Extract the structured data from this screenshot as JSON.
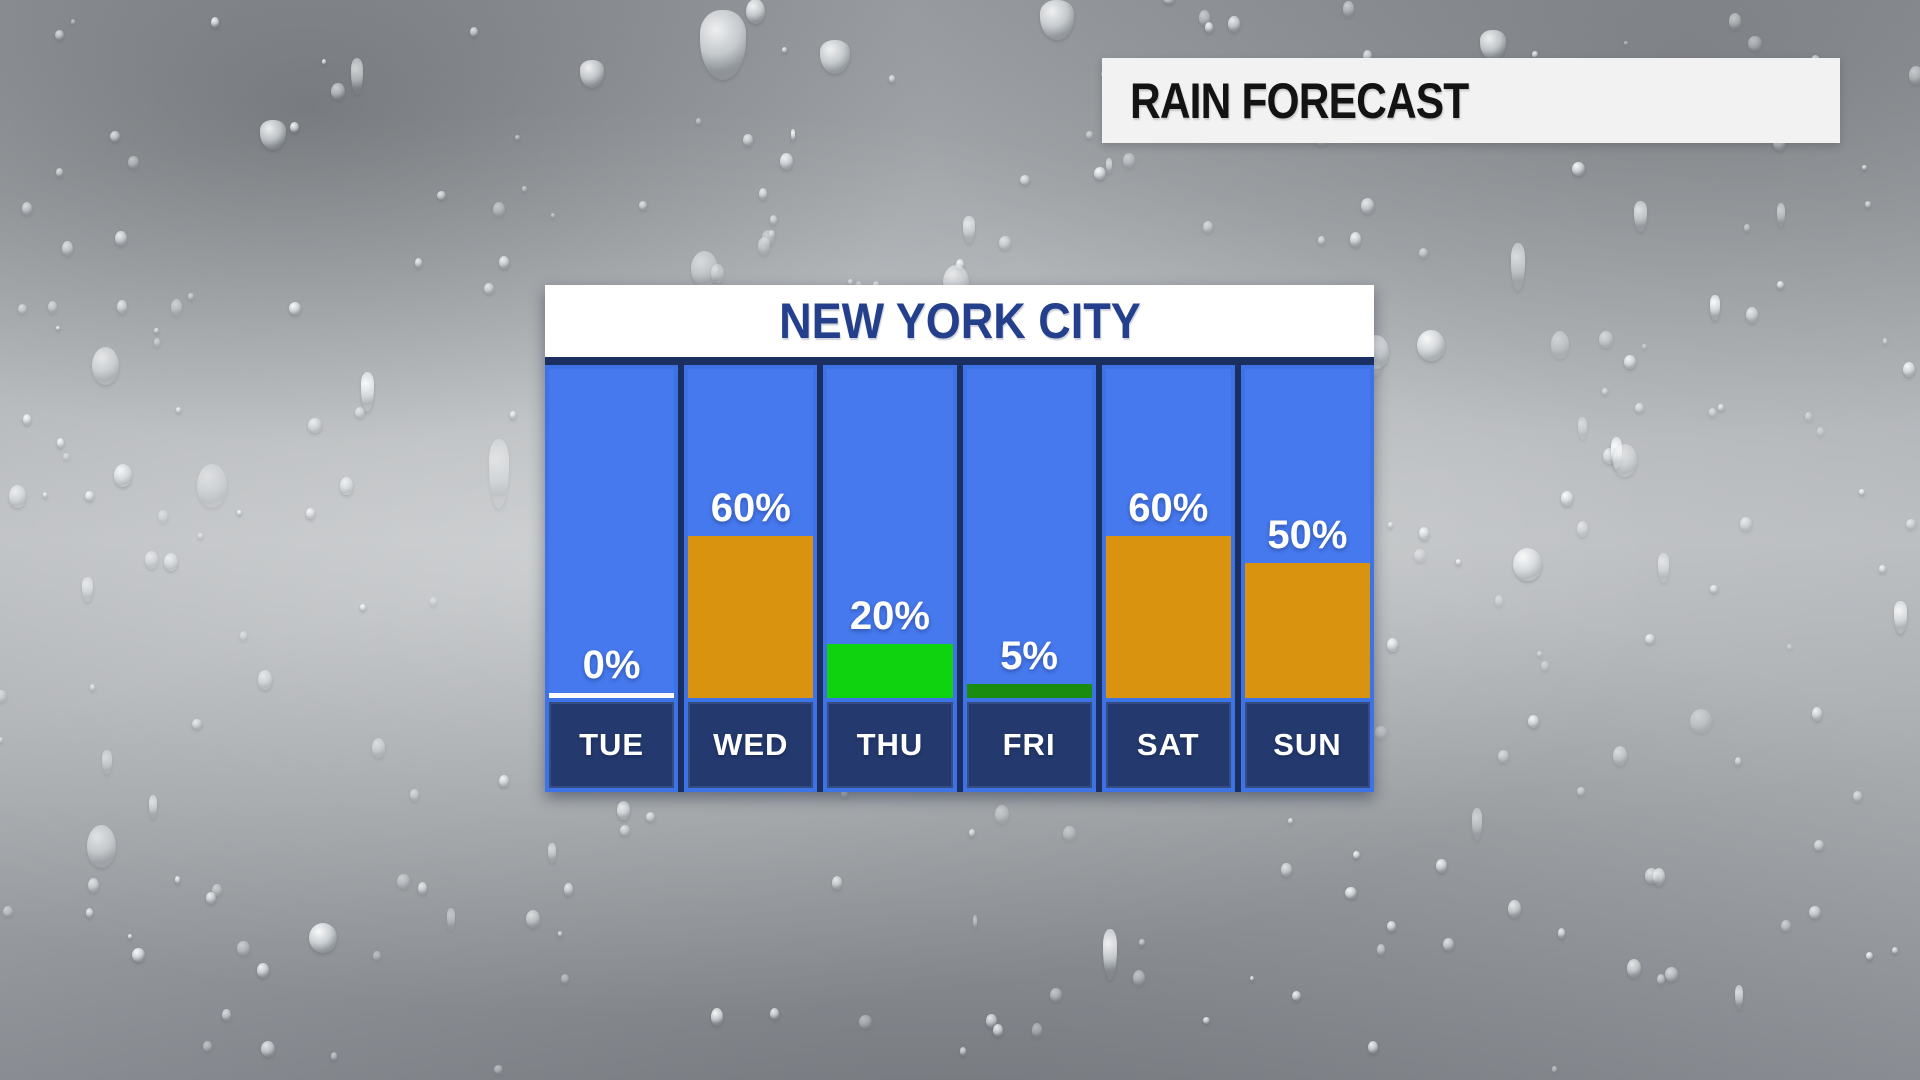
{
  "banner": {
    "title": "RAIN FORECAST",
    "bg_color": "#f2f2f3",
    "text_color": "#131313"
  },
  "chart_data": {
    "type": "bar",
    "title": "NEW YORK CITY",
    "categories": [
      "TUE",
      "WED",
      "THU",
      "FRI",
      "SAT",
      "SUN"
    ],
    "values": [
      0,
      60,
      20,
      5,
      60,
      50
    ],
    "value_labels": [
      "0%",
      "60%",
      "20%",
      "5%",
      "60%",
      "50%"
    ],
    "unit": "%",
    "ylim": [
      0,
      100
    ],
    "grid": false,
    "legend": false,
    "bar_colors": [
      "#ffffff",
      "#d9930f",
      "#0fd30f",
      "#1a8c10",
      "#d9930f",
      "#d9930f"
    ],
    "colors": {
      "column_bg": "#4679ee",
      "column_border": "#3e73e6",
      "label_band_bg": "#24396e",
      "chart_bg": "#1b2f61",
      "header_bg": "#ffffff",
      "title_text": "#24408c",
      "value_text": "#ffffff",
      "day_text": "#ffffff"
    }
  }
}
